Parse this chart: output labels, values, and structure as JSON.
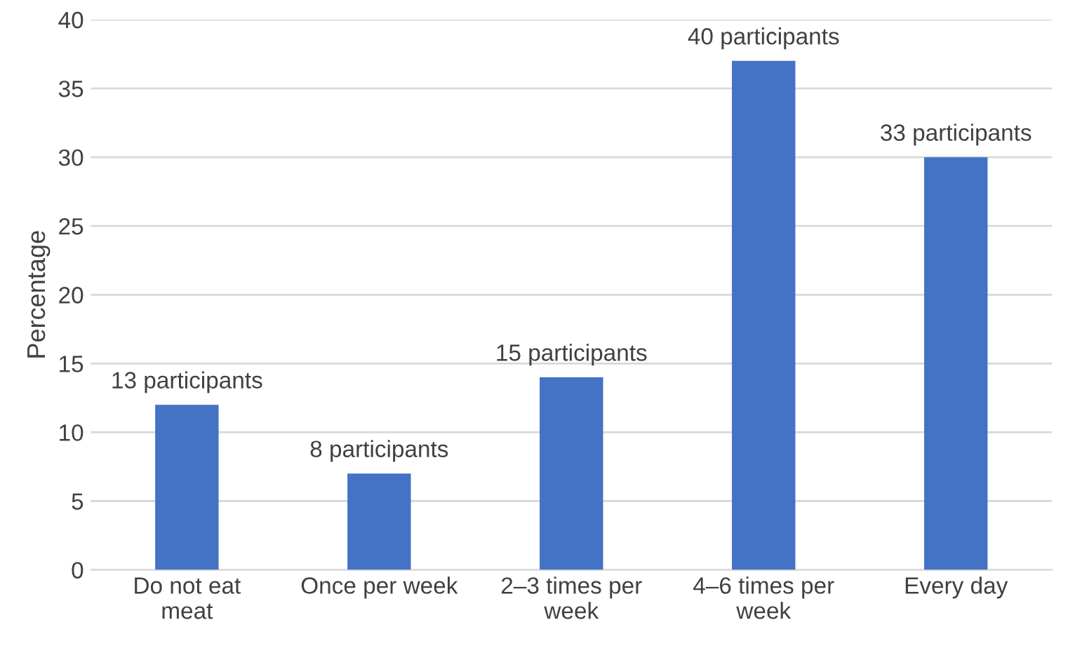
{
  "chart_data": {
    "type": "bar",
    "ylabel": "Percentage",
    "categories": [
      "Do not eat\nmeat",
      "Once per week",
      "2–3 times per\nweek",
      "4–6 times per\nweek",
      "Every day"
    ],
    "values": [
      12,
      7,
      14,
      37,
      30
    ],
    "annotations": [
      {
        "text": "13 participants",
        "x": "Do not eat\nmeat",
        "y": 12
      },
      {
        "text": "8 participants",
        "x": "Once per week",
        "y": 7
      },
      {
        "text": "15 participants",
        "x": "2–3 times per\nweek",
        "y": 14
      },
      {
        "text": "40 participants",
        "x": "4–6 times per\nweek",
        "y": 37
      },
      {
        "text": "33 participants",
        "x": "Every day",
        "y": 30
      }
    ],
    "color": "#4472c4",
    "ylim": [
      0,
      40
    ],
    "yticks": [
      0,
      5,
      10,
      15,
      20,
      25,
      30,
      35,
      40
    ],
    "grid": "y",
    "legend": false
  }
}
